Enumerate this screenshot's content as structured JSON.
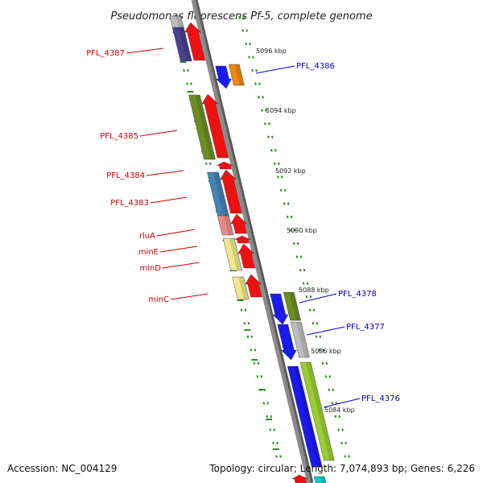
{
  "title": "Pseudomonas fluorescens Pf-5, complete genome",
  "footer": {
    "accession": "Accession: NC_004129",
    "topology": "Topology: circular; Length: 7,074,893 bp; Genes: 6,226"
  },
  "scale_labels": [
    "5096 kbp",
    "5094 kbp",
    "5092 kbp",
    "5090 kbp",
    "5088 kbp",
    "5086 kbp",
    "5084 kbp"
  ],
  "left_labels": [
    "PFL_4387",
    "PFL_4385",
    "PFL_4384",
    "PFL_4383",
    "rluA",
    "minE",
    "minD",
    "minC"
  ],
  "right_labels": [
    "PFL_4386",
    "PFL_4378",
    "PFL_4377",
    "PFL_4376"
  ],
  "colors": {
    "left_label": "#cc0000",
    "right_label": "#0000cc",
    "backbone": "#8a8a8a",
    "tick": "#2e8b2e",
    "red": "#ee1111",
    "blue": "#1a1aee",
    "orange": "#f08a10",
    "olive": "#6b8e23",
    "purple": "#4b3f8f",
    "steel": "#4682b4",
    "pink": "#e88a8a",
    "khaki": "#f0e68c",
    "gray": "#bdbdbd",
    "lime": "#9acd32"
  }
}
